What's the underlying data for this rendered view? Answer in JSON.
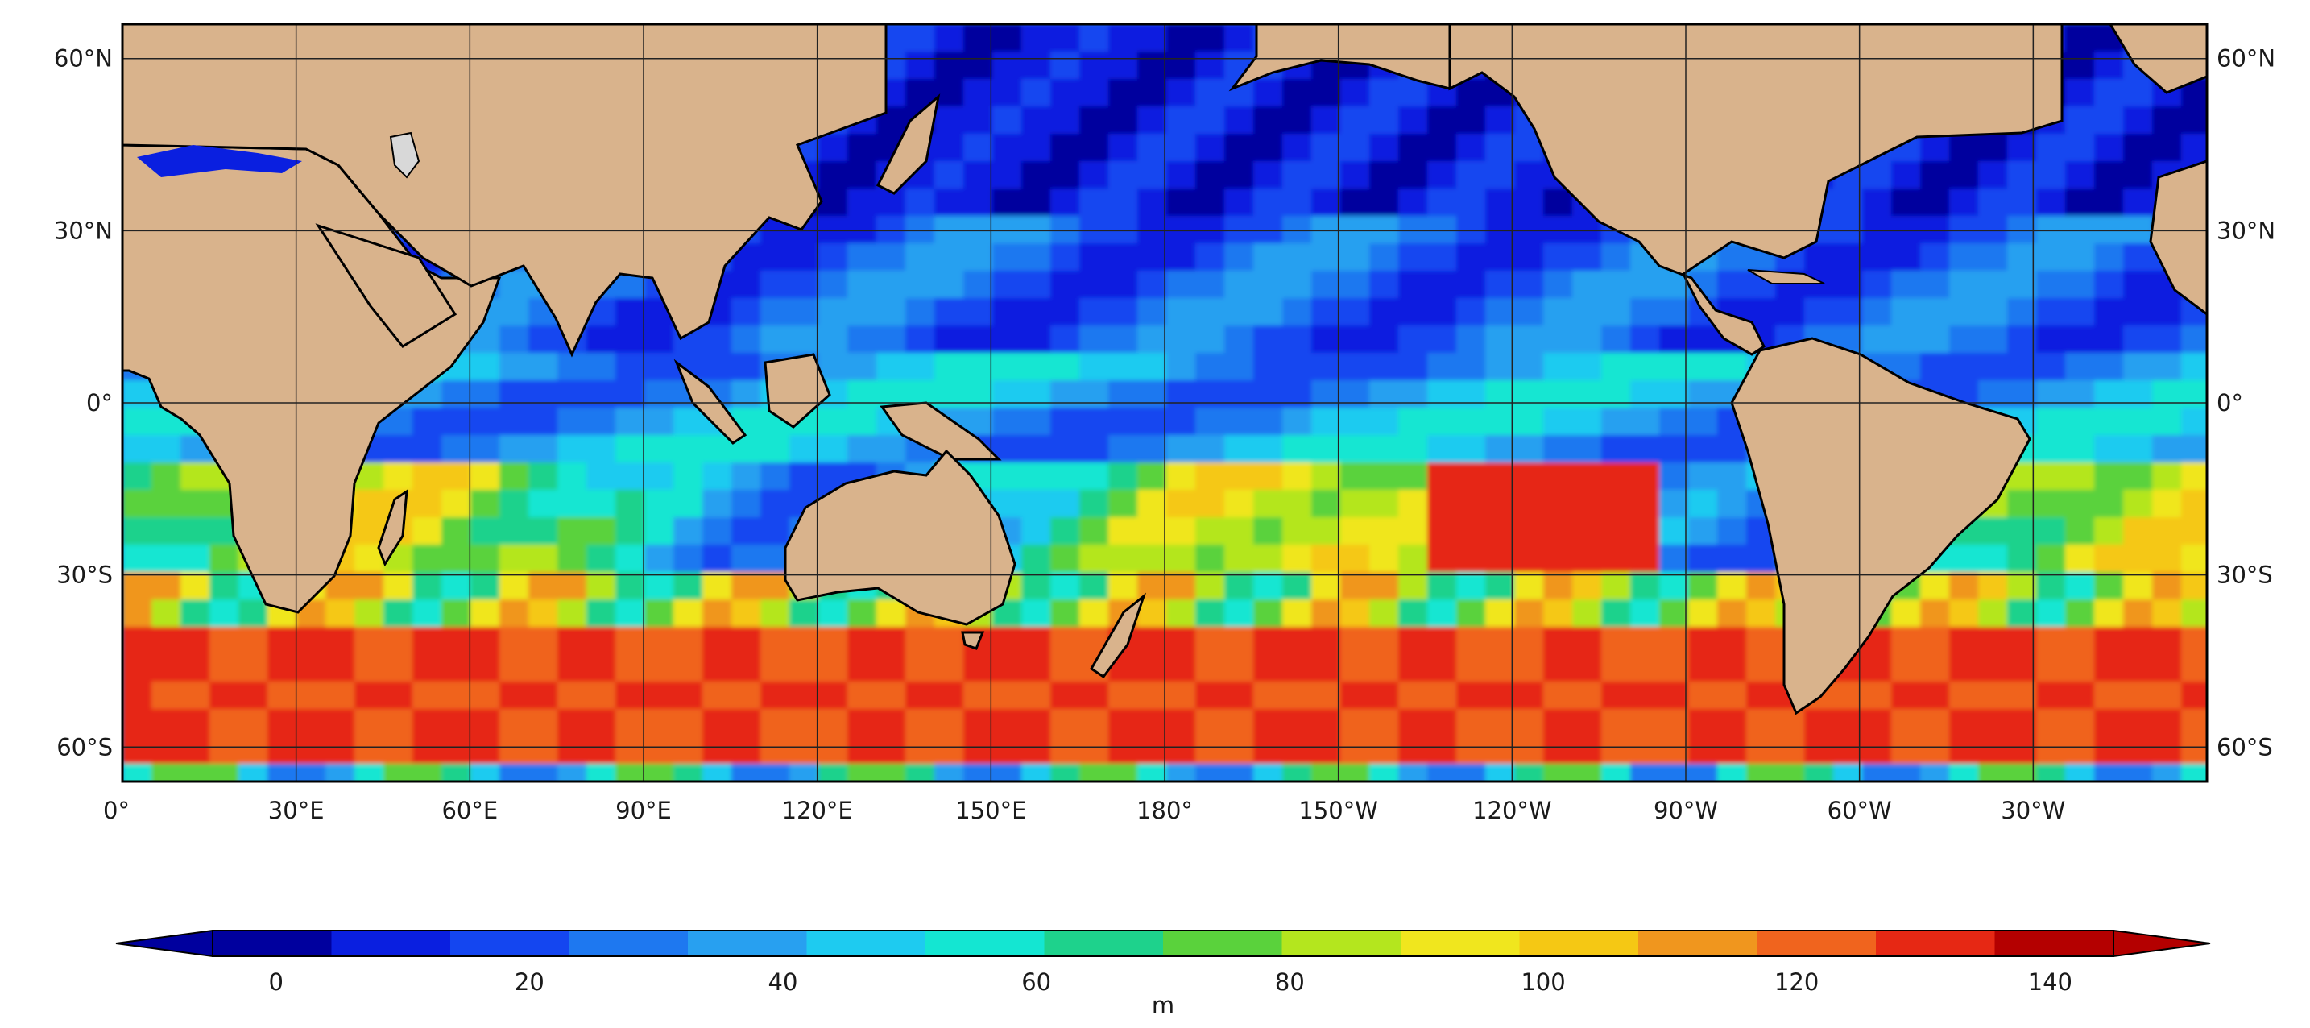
{
  "map": {
    "lat_labels": [
      "60°N",
      "30°N",
      "0°",
      "30°S",
      "60°S"
    ],
    "lat_values": [
      60,
      30,
      0,
      -30,
      -60
    ],
    "lon_labels": [
      "0°",
      "30°E",
      "60°E",
      "90°E",
      "120°E",
      "150°E",
      "180°",
      "150°W",
      "120°W",
      "90°W",
      "60°W",
      "30°W"
    ],
    "lon_values": [
      0,
      30,
      60,
      90,
      120,
      150,
      180,
      210,
      240,
      270,
      300,
      330
    ],
    "extent": {
      "lon": [
        0,
        360
      ],
      "lat": [
        -66,
        66
      ]
    },
    "grid": true,
    "colors": {
      "land": "#d9b38c",
      "ice": "#d8d8d8",
      "coast": "#000000",
      "grid": "#222222"
    }
  },
  "colorbar": {
    "min": 0,
    "max": 150,
    "step": 10,
    "extend": "both",
    "orientation": "horizontal",
    "tick_values": [
      0,
      20,
      40,
      60,
      80,
      100,
      120,
      140
    ],
    "tick_labels": [
      "0",
      "20",
      "40",
      "60",
      "80",
      "100",
      "120",
      "140"
    ],
    "unit_label": "m",
    "colors": [
      "#00009e",
      "#0a1fe0",
      "#1446f0",
      "#1e78f0",
      "#28a0f0",
      "#1ecbf0",
      "#14e6d2",
      "#1ed28c",
      "#5ad23c",
      "#b4e61e",
      "#f0e61e",
      "#f5c814",
      "#f0961e",
      "#f0641e",
      "#e62814",
      "#b40000"
    ],
    "extend_colors": {
      "low": "#00009e",
      "high": "#b40000"
    }
  }
}
